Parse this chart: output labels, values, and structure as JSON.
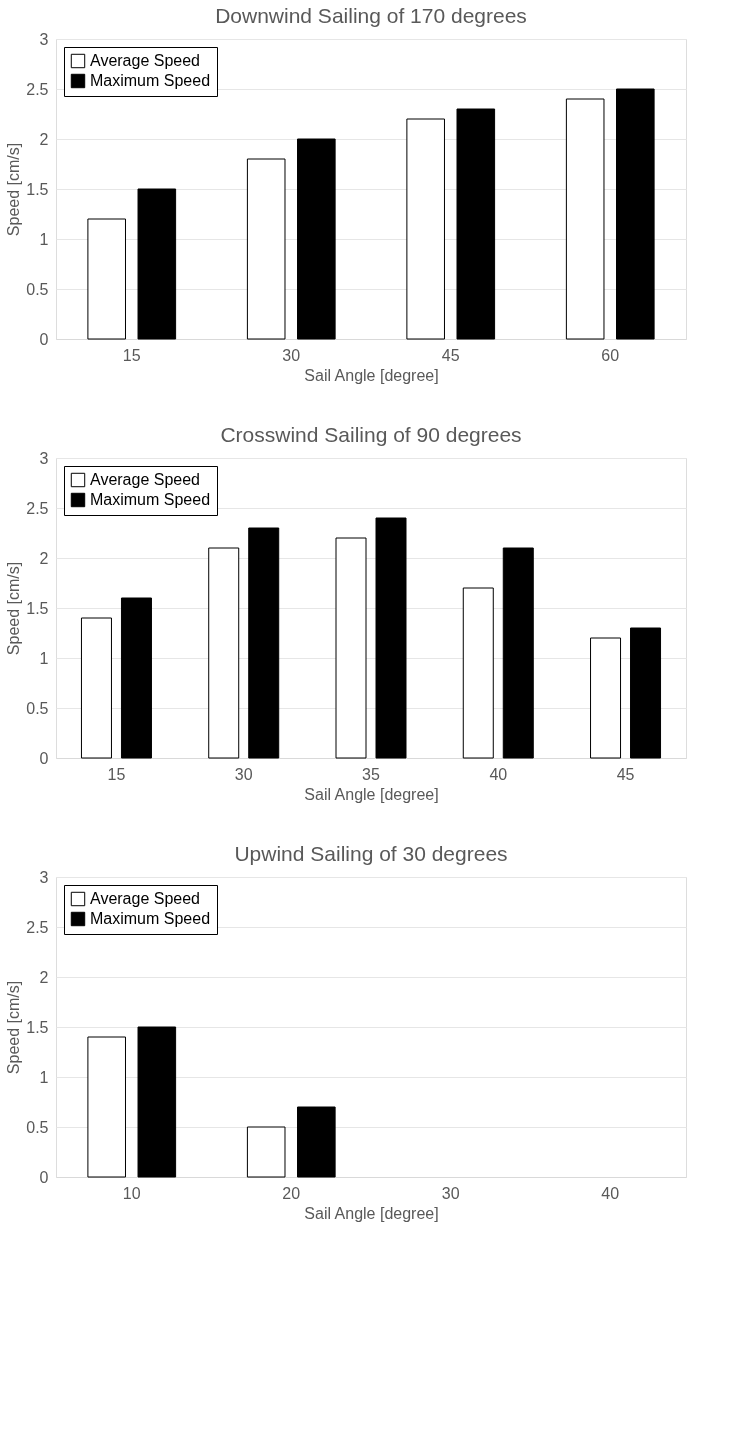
{
  "chart_data": [
    {
      "type": "bar",
      "title": "Downwind Sailing of 170 degrees",
      "xlabel": "Sail Angle [degree]",
      "ylabel": "Speed [cm/s]",
      "categories": [
        "15",
        "30",
        "45",
        "60"
      ],
      "series": [
        {
          "name": "Average Speed",
          "color": "#ffffff",
          "values": [
            1.2,
            1.8,
            2.2,
            2.4
          ]
        },
        {
          "name": "Maximum Speed",
          "color": "#000000",
          "values": [
            1.5,
            2.0,
            2.3,
            2.5
          ]
        }
      ],
      "ylim": [
        0,
        3
      ],
      "yticks": [
        0,
        0.5,
        1,
        1.5,
        2,
        2.5,
        3
      ],
      "grid": "y",
      "legend": "top left"
    },
    {
      "type": "bar",
      "title": "Crosswind Sailing of 90 degrees",
      "xlabel": "Sail Angle [degree]",
      "ylabel": "Speed [cm/s]",
      "categories": [
        "15",
        "30",
        "35",
        "40",
        "45"
      ],
      "series": [
        {
          "name": "Average Speed",
          "color": "#ffffff",
          "values": [
            1.4,
            2.1,
            2.2,
            1.7,
            1.2
          ]
        },
        {
          "name": "Maximum Speed",
          "color": "#000000",
          "values": [
            1.6,
            2.3,
            2.4,
            2.1,
            1.3
          ]
        }
      ],
      "ylim": [
        0,
        3
      ],
      "yticks": [
        0,
        0.5,
        1,
        1.5,
        2,
        2.5,
        3
      ],
      "grid": "y",
      "legend": "top left"
    },
    {
      "type": "bar",
      "title": "Upwind Sailing of 30 degrees",
      "xlabel": "Sail Angle [degree]",
      "ylabel": "Speed [cm/s]",
      "categories": [
        "10",
        "20",
        "30",
        "40"
      ],
      "series": [
        {
          "name": "Average Speed",
          "color": "#ffffff",
          "values": [
            1.4,
            0.5,
            null,
            null
          ]
        },
        {
          "name": "Maximum Speed",
          "color": "#000000",
          "values": [
            1.5,
            0.7,
            null,
            null
          ]
        }
      ],
      "ylim": [
        0,
        3
      ],
      "yticks": [
        0,
        0.5,
        1,
        1.5,
        2,
        2.5,
        3
      ],
      "grid": "y",
      "legend": "top left"
    }
  ]
}
